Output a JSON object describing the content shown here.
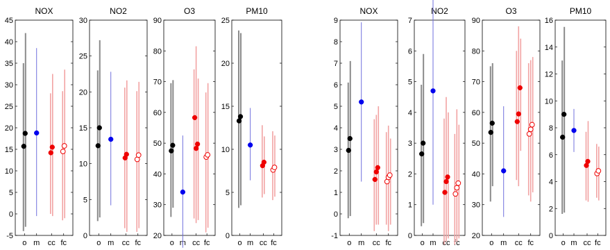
{
  "colors": {
    "obs": "#000000",
    "obs_range": "#8a8a8a",
    "model": "#0000ee",
    "model_range": "#7070dd",
    "cc": "#ee0000",
    "cc_range": "#f2a3a3",
    "fc": "#ee0000",
    "fc_range": "#f2a3a3"
  },
  "chart_data": [
    {
      "type": "scatter",
      "title": "NOX",
      "ylim": [
        -5,
        45
      ],
      "yticks": [
        -5,
        0,
        5,
        10,
        15,
        20,
        25,
        30,
        35,
        40,
        45
      ],
      "categories": [
        "o",
        "m",
        "cc",
        "fc"
      ],
      "series": [
        {
          "category": "o",
          "points": [
            15.7,
            18.7
          ],
          "ranges": [
            [
              -4,
              35
            ],
            [
              -3,
              42
            ]
          ]
        },
        {
          "category": "m",
          "points": [
            18.8
          ],
          "ranges": [
            [
              -0.5,
              38.5
            ]
          ]
        },
        {
          "category": "cc",
          "points": [
            14.2,
            15.5
          ],
          "ranges": [
            [
              0,
              28
            ],
            [
              -0.5,
              32.5
            ]
          ]
        },
        {
          "category": "fc",
          "points": [
            14.5,
            15.8
          ],
          "ranges": [
            [
              -1.5,
              28.5
            ],
            [
              -1,
              33.5
            ]
          ]
        }
      ]
    },
    {
      "type": "scatter",
      "title": "NO2",
      "ylim": [
        0,
        30
      ],
      "yticks": [
        0,
        5,
        10,
        15,
        20,
        25,
        30
      ],
      "categories": [
        "o",
        "m",
        "cc",
        "fc"
      ],
      "series": [
        {
          "category": "o",
          "points": [
            12.5,
            15
          ],
          "ranges": [
            [
              2,
              23
            ],
            [
              2.5,
              27.2
            ]
          ]
        },
        {
          "category": "m",
          "points": [
            13.4
          ],
          "ranges": [
            [
              4.2,
              22.8
            ]
          ]
        },
        {
          "category": "cc",
          "points": [
            10.8,
            11.3
          ],
          "ranges": [
            [
              1,
              20.6
            ],
            [
              0.5,
              21.6
            ]
          ]
        },
        {
          "category": "fc",
          "points": [
            10.6,
            11.2
          ],
          "ranges": [
            [
              0.5,
              20.1
            ],
            [
              1,
              21.4
            ]
          ]
        }
      ]
    },
    {
      "type": "scatter",
      "title": "O3",
      "ylim": [
        20,
        90
      ],
      "yticks": [
        20,
        30,
        40,
        50,
        60,
        70,
        80,
        90
      ],
      "categories": [
        "o",
        "m",
        "cc",
        "fc"
      ],
      "series": [
        {
          "category": "o",
          "points": [
            47.5,
            49.3
          ],
          "ranges": [
            [
              26,
              69.5
            ],
            [
              29,
              70.5
            ]
          ]
        },
        {
          "category": "m",
          "points": [
            34.1
          ],
          "ranges": [
            [
              16,
              52.5
            ]
          ]
        },
        {
          "category": "cc",
          "points": [
            58.3,
            48.3,
            49.7
          ],
          "ranges": [
            [
              25.5,
              74
            ],
            [
              24,
              81.5
            ],
            [
              25,
              71
            ]
          ]
        },
        {
          "category": "fc",
          "points": [
            45.5,
            46.2
          ],
          "ranges": [
            [
              21,
              66.5
            ],
            [
              22.5,
              69.5
            ]
          ]
        }
      ]
    },
    {
      "type": "scatter",
      "title": "PM10",
      "ylim": [
        0,
        25
      ],
      "yticks": [
        0,
        5,
        10,
        15,
        20,
        25
      ],
      "categories": [
        "o",
        "m",
        "cc",
        "fc"
      ],
      "series": [
        {
          "category": "o",
          "points": [
            13.3,
            13.8
          ],
          "ranges": [
            [
              3.2,
              23.8
            ],
            [
              3.5,
              23.5
            ]
          ]
        },
        {
          "category": "m",
          "points": [
            10.5
          ],
          "ranges": [
            [
              6.4,
              14.8
            ]
          ]
        },
        {
          "category": "cc",
          "points": [
            8.1,
            8.5
          ],
          "ranges": [
            [
              4.4,
              12.8
            ],
            [
              4.8,
              11.5
            ]
          ]
        },
        {
          "category": "fc",
          "points": [
            7.6,
            7.9
          ],
          "ranges": [
            [
              4.1,
              12.1
            ],
            [
              4.5,
              11.6
            ]
          ]
        }
      ]
    },
    {
      "type": "scatter",
      "title": "NOX",
      "ylim": [
        -1,
        9
      ],
      "yticks": [
        -1,
        0,
        1,
        2,
        3,
        4,
        5,
        6,
        7,
        8,
        9
      ],
      "categories": [
        "o",
        "m",
        "cc",
        "fc"
      ],
      "series": [
        {
          "category": "o",
          "points": [
            2.95,
            3.5
          ],
          "ranges": [
            [
              -0.2,
              6.1
            ],
            [
              -0.1,
              7.1
            ]
          ]
        },
        {
          "category": "m",
          "points": [
            5.2
          ],
          "ranges": [
            [
              1.5,
              8.9
            ]
          ]
        },
        {
          "category": "cc",
          "points": [
            1.6,
            1.95,
            2.15
          ],
          "ranges": [
            [
              -0.8,
              4.4
            ],
            [
              -0.5,
              4.6
            ],
            [
              -0.5,
              5
            ]
          ]
        },
        {
          "category": "fc",
          "points": [
            1.5,
            1.7,
            1.8
          ],
          "ranges": [
            [
              -0.5,
              3.8
            ],
            [
              -0.8,
              4.1
            ],
            [
              -0.5,
              3.5
            ]
          ]
        }
      ]
    },
    {
      "type": "scatter",
      "title": "NO2",
      "ylim": [
        0,
        7
      ],
      "yticks": [
        0,
        1,
        2,
        3,
        4,
        5,
        6,
        7
      ],
      "categories": [
        "o",
        "m",
        "cc",
        "fc"
      ],
      "series": [
        {
          "category": "o",
          "points": [
            2.65,
            3
          ],
          "ranges": [
            [
              0.3,
              4.9
            ],
            [
              0.4,
              5.9
            ]
          ]
        },
        {
          "category": "m",
          "points": [
            4.7
          ],
          "ranges": [
            [
              1,
              8.5
            ]
          ]
        },
        {
          "category": "cc",
          "points": [
            1.4,
            1.75,
            1.9
          ],
          "ranges": [
            [
              -0.3,
              3.8
            ],
            [
              -0.2,
              4.5
            ],
            [
              -0.1,
              4
            ]
          ]
        },
        {
          "category": "fc",
          "points": [
            1.35,
            1.55,
            1.7
          ],
          "ranges": [
            [
              -0.3,
              3.3
            ],
            [
              -0.2,
              4.1
            ],
            [
              -0.1,
              3.6
            ]
          ]
        }
      ]
    },
    {
      "type": "scatter",
      "title": "O3",
      "ylim": [
        20,
        90
      ],
      "yticks": [
        20,
        30,
        40,
        50,
        60,
        70,
        80,
        90
      ],
      "categories": [
        "o",
        "m",
        "cc",
        "fc"
      ],
      "series": [
        {
          "category": "o",
          "points": [
            53.5,
            56.5
          ],
          "ranges": [
            [
              31,
              75
            ],
            [
              36,
              76
            ]
          ]
        },
        {
          "category": "m",
          "points": [
            41
          ],
          "ranges": [
            [
              26,
              62
            ]
          ]
        },
        {
          "category": "cc",
          "points": [
            57,
            59.5,
            68
          ],
          "ranges": [
            [
              38,
              80
            ],
            [
              36,
              88
            ],
            [
              47.5,
              84
            ]
          ]
        },
        {
          "category": "fc",
          "points": [
            53,
            54.5,
            56
          ],
          "ranges": [
            [
              33,
              76
            ],
            [
              31,
              77
            ],
            [
              34,
              78
            ]
          ]
        }
      ]
    },
    {
      "type": "scatter",
      "title": "PM10",
      "ylim": [
        0,
        16
      ],
      "yticks": [
        0,
        2,
        4,
        6,
        8,
        10,
        12,
        14,
        16
      ],
      "categories": [
        "o",
        "m",
        "cc",
        "fc"
      ],
      "series": [
        {
          "category": "o",
          "points": [
            7.3,
            9
          ],
          "ranges": [
            [
              1.6,
              13
            ],
            [
              1.7,
              15.5
            ]
          ]
        },
        {
          "category": "m",
          "points": [
            7.8
          ],
          "ranges": [
            [
              6.2,
              9.4
            ]
          ]
        },
        {
          "category": "cc",
          "points": [
            5.2,
            5.5
          ],
          "ranges": [
            [
              2.6,
              7.7
            ],
            [
              2.5,
              8.5
            ]
          ]
        },
        {
          "category": "fc",
          "points": [
            4.6,
            4.8
          ],
          "ranges": [
            [
              2.8,
              6.8
            ],
            [
              2.6,
              6.6
            ]
          ]
        }
      ]
    }
  ]
}
